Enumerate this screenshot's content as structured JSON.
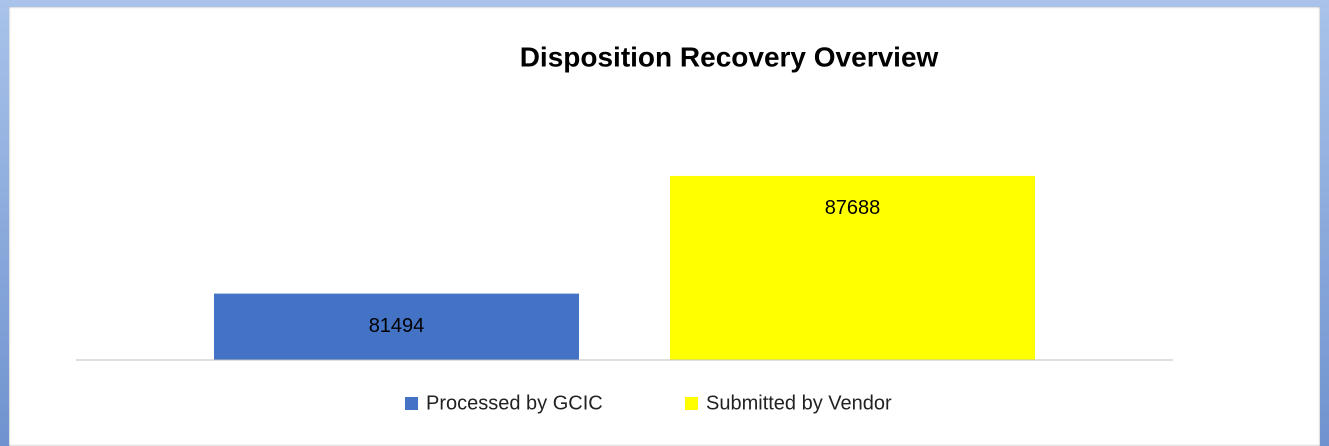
{
  "chart_data": {
    "type": "bar",
    "title": "Disposition Recovery Overview",
    "categories": [
      null
    ],
    "series": [
      {
        "name": "Processed by GCIC",
        "color": "#4472c4",
        "values": [
          81494
        ]
      },
      {
        "name": "Submitted by Vendor",
        "color": "#ffff00",
        "values": [
          87688
        ]
      }
    ],
    "ylim": [
      78000,
      88000
    ],
    "legend": "bottom"
  }
}
